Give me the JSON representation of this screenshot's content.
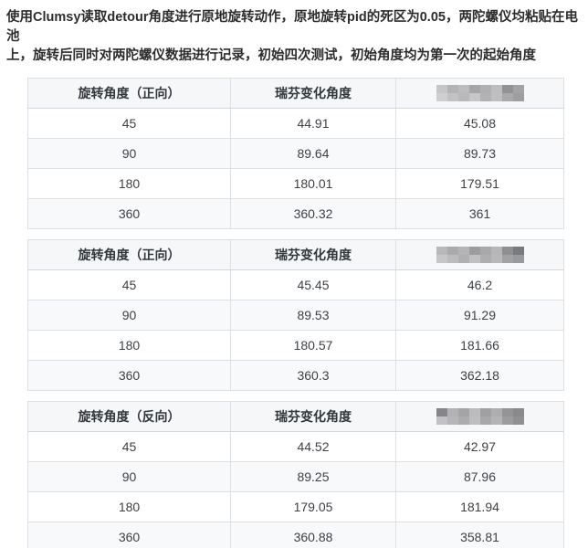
{
  "intro": {
    "lines": [
      "使用Clumsy读取detour角度进行原地旋转动作，原地旋转pid的死区为0.05，两陀螺仪均粘贴在电池",
      "上，旋转后同时对两陀螺仪数据进行记录，初始四次测试，初始角度均为第一次的起始角度"
    ]
  },
  "tables": [
    {
      "columns": [
        "旋转角度（正向）",
        "瑞芬变化角度"
      ],
      "rows": [
        [
          "45",
          "44.91",
          "45.08"
        ],
        [
          "90",
          "89.64",
          "89.73"
        ],
        [
          "180",
          "180.01",
          "179.51"
        ],
        [
          "360",
          "360.32",
          "361"
        ]
      ],
      "redacted_mosaic": [
        [
          "#c6c6c8",
          "#b3b3b5",
          "#bcbcbe",
          "#a5a5a7",
          "#b0b0b2",
          "#bebec0",
          "#929294",
          "#a3a3a5"
        ],
        [
          "#cfcfd1",
          "#c2c2c4",
          "#babanc",
          "#c6c6c8",
          "#b2b2b4",
          "#bfbfc1",
          "#a9a9ab",
          "#9e9ea0"
        ]
      ]
    },
    {
      "columns": [
        "旋转角度（正向）",
        "瑞芬变化角度"
      ],
      "rows": [
        [
          "45",
          "45.45",
          "46.2"
        ],
        [
          "90",
          "89.53",
          "91.29"
        ],
        [
          "180",
          "180.57",
          "181.66"
        ],
        [
          "360",
          "360.3",
          "362.18"
        ]
      ],
      "redacted_mosaic": [
        [
          "#b8b8ba",
          "#aaaaac",
          "#b4b4b6",
          "#9c9c9e",
          "#a8a8aa",
          "#b6b6b8",
          "#8f8f91",
          "#77797c"
        ],
        [
          "#c6c6c8",
          "#bcbcbe",
          "#b0b0b2",
          "#c0c0c2",
          "#aeaeb0",
          "#b8b8ba",
          "#a2a2a4",
          "#989a9c"
        ]
      ]
    },
    {
      "columns": [
        "旋转角度（反向）",
        "瑞芬变化角度"
      ],
      "rows": [
        [
          "45",
          "44.52",
          "42.97"
        ],
        [
          "90",
          "89.25",
          "87.96"
        ],
        [
          "180",
          "179.05",
          "181.94"
        ],
        [
          "360",
          "360.88",
          "358.81"
        ]
      ],
      "redacted_mosaic": [
        [
          "#86868a",
          "#b2b2b4",
          "#a4a4a6",
          "#bcbcbe",
          "#a0a0a2",
          "#aeaeb0",
          "#949496",
          "#8a8a8c"
        ],
        [
          "#c2c2c4",
          "#b6b6b8",
          "#acacae",
          "#bebec0",
          "#a8a8aa",
          "#b4b4b6",
          "#9c9c9e",
          "#909092"
        ]
      ]
    }
  ],
  "colors": {
    "border": "#dce0e5",
    "header_bg": "#f6f7f8",
    "zebra_bg": "#f8f9fa",
    "text": "#3d4146"
  }
}
